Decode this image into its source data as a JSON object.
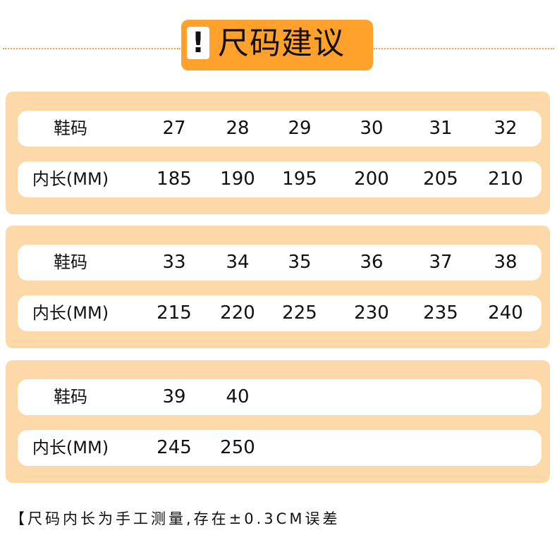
{
  "header": {
    "title": "尺码建议",
    "icon": "exclamation-icon",
    "accent": "#ffa12b",
    "panel_color": "#fdd8a8"
  },
  "row_labels": {
    "size": "鞋码",
    "length": "内长(MM)"
  },
  "groups": [
    {
      "sizes": [
        "27",
        "28",
        "29",
        "30",
        "31",
        "32"
      ],
      "lengths": [
        "185",
        "190",
        "195",
        "200",
        "205",
        "210"
      ]
    },
    {
      "sizes": [
        "33",
        "34",
        "35",
        "36",
        "37",
        "38"
      ],
      "lengths": [
        "215",
        "220",
        "225",
        "230",
        "235",
        "240"
      ]
    },
    {
      "sizes": [
        "39",
        "40"
      ],
      "lengths": [
        "245",
        "250"
      ]
    }
  ],
  "note": "【尺码内长为手工测量,存在±0.3CM误差"
}
